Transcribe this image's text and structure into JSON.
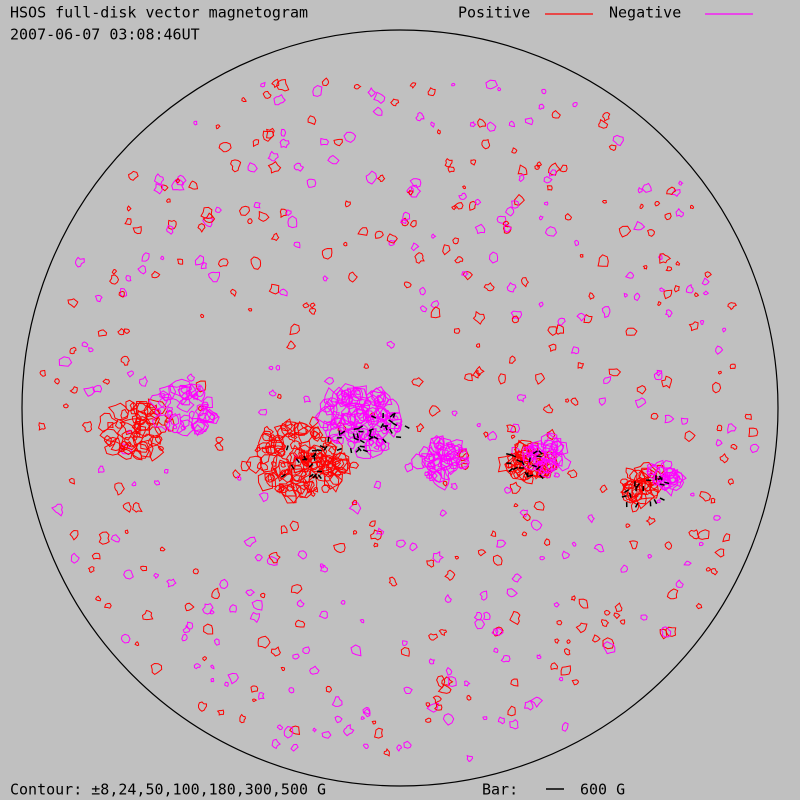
{
  "header": {
    "title": "HSOS full-disk vector magnetogram",
    "timestamp": "2007-06-07 03:08:46UT"
  },
  "legend": {
    "items": [
      {
        "label": "Positive",
        "color": "#ff0000"
      },
      {
        "label": "Negative",
        "color": "#ff00ff"
      }
    ]
  },
  "footer": {
    "contour": "Contour: ±8,24,50,100,180,300,500 G",
    "bar_label": "Bar:",
    "bar_value": "600 G"
  }
}
